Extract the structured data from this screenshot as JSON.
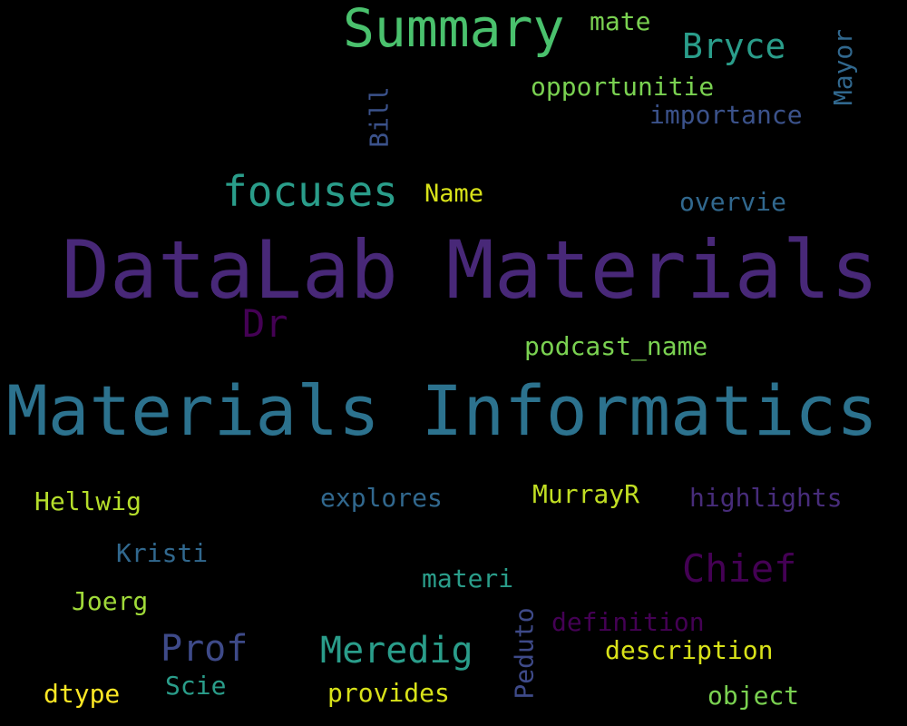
{
  "word_cloud": {
    "background": "#000000",
    "colormap": "viridis",
    "words": [
      {
        "text": "DataLab Materials",
        "color": "#482878",
        "orientation": "horizontal"
      },
      {
        "text": "Materials Informatics",
        "color": "#2c728e",
        "orientation": "horizontal"
      },
      {
        "text": "Summary",
        "color": "#4ac16d",
        "orientation": "horizontal"
      },
      {
        "text": "focuses",
        "color": "#2a9d8a",
        "orientation": "horizontal"
      },
      {
        "text": "Dr",
        "color": "#440154",
        "orientation": "horizontal"
      },
      {
        "text": "Chief",
        "color": "#440154",
        "orientation": "horizontal"
      },
      {
        "text": "Prof",
        "color": "#3e4a89",
        "orientation": "horizontal"
      },
      {
        "text": "Meredig",
        "color": "#2a9d8a",
        "orientation": "horizontal"
      },
      {
        "text": "Bryce",
        "color": "#2a9d8a",
        "orientation": "horizontal"
      },
      {
        "text": "mate",
        "color": "#7ad151",
        "orientation": "horizontal"
      },
      {
        "text": "Mayor",
        "color": "#31688e",
        "orientation": "vertical"
      },
      {
        "text": "opportunitie",
        "color": "#7ad151",
        "orientation": "horizontal"
      },
      {
        "text": "importance",
        "color": "#3b528b",
        "orientation": "horizontal"
      },
      {
        "text": "Bill",
        "color": "#3b528b",
        "orientation": "vertical"
      },
      {
        "text": "Name",
        "color": "#d8e219",
        "orientation": "horizontal"
      },
      {
        "text": "overvie",
        "color": "#31688e",
        "orientation": "horizontal"
      },
      {
        "text": "podcast_name",
        "color": "#7ad151",
        "orientation": "horizontal"
      },
      {
        "text": "Hellwig",
        "color": "#b5de2b",
        "orientation": "horizontal"
      },
      {
        "text": "explores",
        "color": "#31688e",
        "orientation": "horizontal"
      },
      {
        "text": "MurrayR",
        "color": "#c2df23",
        "orientation": "horizontal"
      },
      {
        "text": "highlights",
        "color": "#472c7a",
        "orientation": "horizontal"
      },
      {
        "text": "Kristi",
        "color": "#31688e",
        "orientation": "horizontal"
      },
      {
        "text": "materi",
        "color": "#2a9d8a",
        "orientation": "horizontal"
      },
      {
        "text": "Joerg",
        "color": "#a0da39",
        "orientation": "horizontal"
      },
      {
        "text": "Peduto",
        "color": "#3e4a89",
        "orientation": "vertical"
      },
      {
        "text": "definition",
        "color": "#440154",
        "orientation": "horizontal"
      },
      {
        "text": "description",
        "color": "#d8e219",
        "orientation": "horizontal"
      },
      {
        "text": "Scie",
        "color": "#2a9d8a",
        "orientation": "horizontal"
      },
      {
        "text": "dtype",
        "color": "#fde725",
        "orientation": "horizontal"
      },
      {
        "text": "provides",
        "color": "#d8e219",
        "orientation": "horizontal"
      },
      {
        "text": "object",
        "color": "#7ad151",
        "orientation": "horizontal"
      }
    ]
  }
}
